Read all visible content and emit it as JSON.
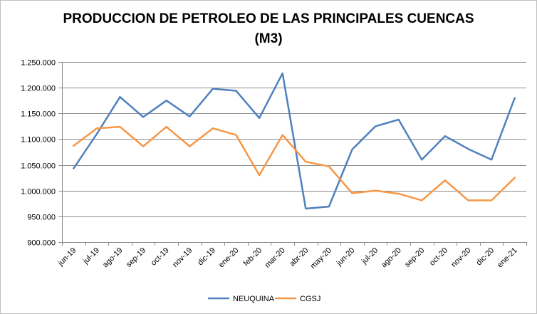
{
  "chart_data": {
    "type": "line",
    "title": "PRODUCCION DE PETROLEO DE LAS PRINCIPALES CUENCAS",
    "subtitle": "(M3)",
    "xlabel": "",
    "ylabel": "",
    "ylim": [
      900000,
      1250000
    ],
    "ytick_step": 50000,
    "ytick_labels": [
      "900.000",
      "950.000",
      "1.000.000",
      "1.050.000",
      "1.100.000",
      "1.150.000",
      "1.200.000",
      "1.250.000"
    ],
    "grid": true,
    "legend_position": "bottom",
    "categories": [
      "jun-19",
      "jul-19",
      "ago-19",
      "sep-19",
      "oct-19",
      "nov-19",
      "dic-19",
      "ene-20",
      "feb-20",
      "mar-20",
      "abr-20",
      "may-20",
      "jun-20",
      "jul-20",
      "ago-20",
      "sep-20",
      "oct-20",
      "nov-20",
      "dic-20",
      "ene-21"
    ],
    "series": [
      {
        "name": "NEUQUINA",
        "color": "#4f81bd",
        "values": [
          1043000,
          1110000,
          1182000,
          1143000,
          1175000,
          1144000,
          1198000,
          1194000,
          1141000,
          1228000,
          965000,
          969000,
          1080000,
          1125000,
          1138000,
          1060000,
          1106000,
          1081000,
          1060000,
          1180000
        ]
      },
      {
        "name": "CGSJ",
        "color": "#f79646",
        "values": [
          1087000,
          1121000,
          1124000,
          1086000,
          1124000,
          1086000,
          1121000,
          1108000,
          1030000,
          1108000,
          1056000,
          1047000,
          995000,
          1000000,
          994000,
          981000,
          1020000,
          981000,
          981000,
          1025000
        ]
      }
    ]
  }
}
